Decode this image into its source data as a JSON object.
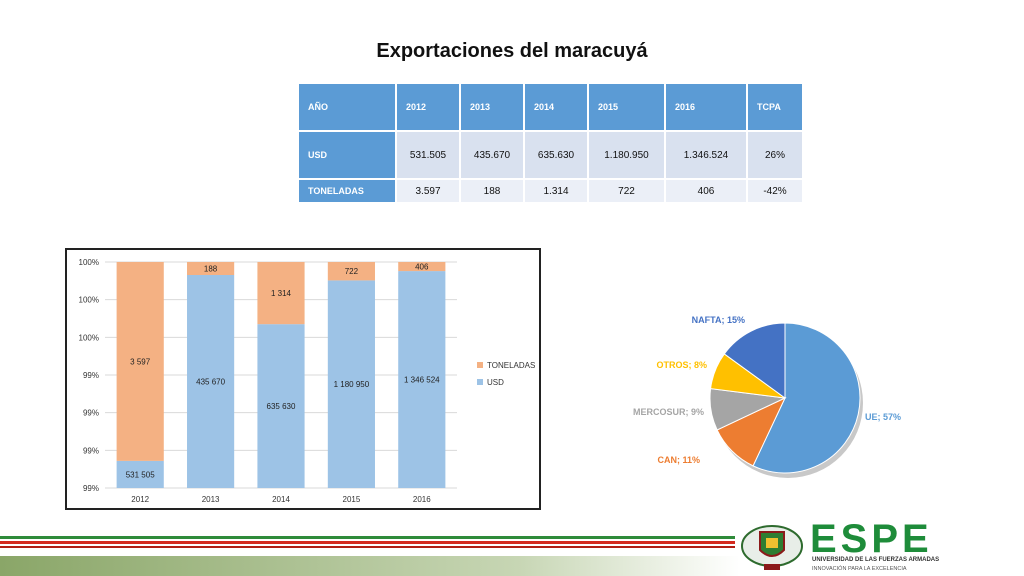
{
  "title": "Exportaciones del maracuyá",
  "table": {
    "headers": [
      "AÑO",
      "2012",
      "2013",
      "2014",
      "2015",
      "2016",
      "TCPA"
    ],
    "rows": [
      {
        "label": "USD",
        "cells": [
          "531.505",
          "435.670",
          "635.630",
          "1.180.950",
          "1.346.524",
          "26%"
        ]
      },
      {
        "label": "TONELADAS",
        "cells": [
          "3.597",
          "188",
          "1.314",
          "722",
          "406",
          "-42%"
        ]
      }
    ]
  },
  "chart_data": [
    {
      "type": "bar",
      "stacked": "percent",
      "categories": [
        "2012",
        "2013",
        "2014",
        "2015",
        "2016"
      ],
      "series": [
        {
          "name": "USD",
          "values": [
            531505,
            435670,
            635630,
            1180950,
            1346524
          ],
          "labels": [
            "531 505",
            "435 670",
            "635 630",
            "1 180 950",
            "1 346 524"
          ],
          "color": "#9dc3e6"
        },
        {
          "name": "TONELADAS",
          "values": [
            3597,
            188,
            1314,
            722,
            406
          ],
          "labels": [
            "3 597",
            "188",
            "1 314",
            "722",
            "406"
          ],
          "color": "#f4b183"
        }
      ],
      "yticks": [
        "100%",
        "100%",
        "100%",
        "99%",
        "99%",
        "99%",
        "99%"
      ],
      "legend": "right"
    },
    {
      "type": "pie",
      "slices": [
        {
          "label": "UE; 57%",
          "value": 57,
          "color": "#5b9bd5"
        },
        {
          "label": "CAN; 11%",
          "value": 11,
          "color": "#ed7d31"
        },
        {
          "label": "MERCOSUR; 9%",
          "value": 9,
          "color": "#a5a5a5"
        },
        {
          "label": "OTROS; 8%",
          "value": 8,
          "color": "#ffc000"
        },
        {
          "label": "NAFTA; 15%",
          "value": 15,
          "color": "#4472c4"
        }
      ]
    }
  ],
  "logo": {
    "text": "ESPE",
    "subtitle": "UNIVERSIDAD DE LAS FUERZAS ARMADAS",
    "tagline": "INNOVACIÓN PARA LA EXCELENCIA"
  }
}
